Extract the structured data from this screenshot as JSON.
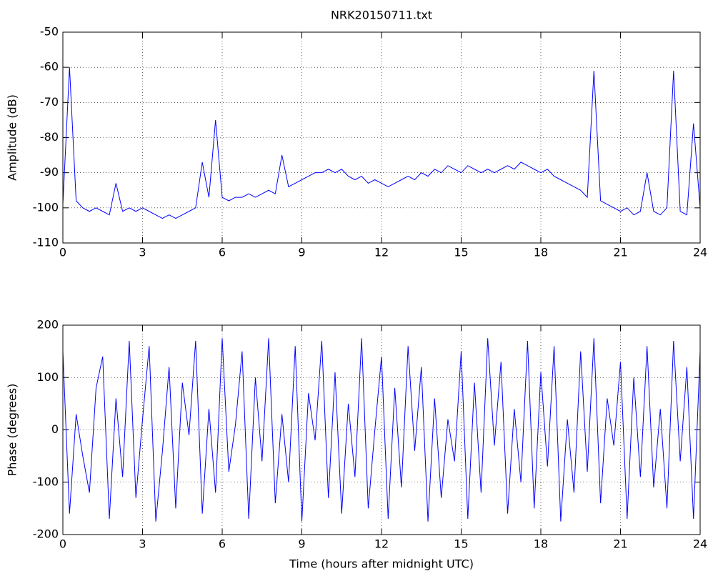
{
  "chart_data": [
    {
      "type": "line",
      "title": "NRK20150711.txt",
      "y_label": "Amplitude (dB)",
      "x": [
        0,
        0.25,
        0.5,
        0.75,
        1,
        1.25,
        1.5,
        1.75,
        2,
        2.25,
        2.5,
        2.75,
        3,
        3.25,
        3.5,
        3.75,
        4,
        4.25,
        4.5,
        4.75,
        5,
        5.25,
        5.5,
        5.75,
        6,
        6.25,
        6.5,
        6.75,
        7,
        7.25,
        7.5,
        7.75,
        8,
        8.25,
        8.5,
        8.75,
        9,
        9.25,
        9.5,
        9.75,
        10,
        10.25,
        10.5,
        10.75,
        11,
        11.25,
        11.5,
        11.75,
        12,
        12.25,
        12.5,
        12.75,
        13,
        13.25,
        13.5,
        13.75,
        14,
        14.25,
        14.5,
        14.75,
        15,
        15.25,
        15.5,
        15.75,
        16,
        16.25,
        16.5,
        16.75,
        17,
        17.25,
        17.5,
        17.75,
        18,
        18.25,
        18.5,
        18.75,
        19,
        19.25,
        19.5,
        19.75,
        20,
        20.25,
        20.5,
        20.75,
        21,
        21.25,
        21.5,
        21.75,
        22,
        22.25,
        22.5,
        22.75,
        23,
        23.25,
        23.5,
        23.75,
        24
      ],
      "series": [
        {
          "name": "Amplitude",
          "color": "#0000ff",
          "values": [
            -99,
            -60,
            -98,
            -100,
            -101,
            -100,
            -101,
            -102,
            -93,
            -101,
            -100,
            -101,
            -100,
            -101,
            -102,
            -103,
            -102,
            -103,
            -102,
            -101,
            -100,
            -87,
            -97,
            -75,
            -97,
            -98,
            -97,
            -97,
            -96,
            -97,
            -96,
            -95,
            -96,
            -85,
            -94,
            -93,
            -92,
            -91,
            -90,
            -90,
            -89,
            -90,
            -89,
            -91,
            -92,
            -91,
            -93,
            -92,
            -93,
            -94,
            -93,
            -92,
            -91,
            -92,
            -90,
            -91,
            -89,
            -90,
            -88,
            -89,
            -90,
            -88,
            -89,
            -90,
            -89,
            -90,
            -89,
            -88,
            -89,
            -87,
            -88,
            -89,
            -90,
            -89,
            -91,
            -92,
            -93,
            -94,
            -95,
            -97,
            -61,
            -98,
            -99,
            -100,
            -101,
            -100,
            -102,
            -101,
            -90,
            -101,
            -102,
            -100,
            -61,
            -101,
            -102,
            -76,
            -100
          ]
        }
      ],
      "xlim": [
        0,
        24
      ],
      "xticks": [
        0,
        3,
        6,
        9,
        12,
        15,
        18,
        21,
        24
      ],
      "ylim": [
        -110,
        -50
      ],
      "yticks": [
        -110,
        -100,
        -90,
        -80,
        -70,
        -60,
        -50
      ],
      "grid": true
    },
    {
      "type": "line",
      "x_label": "Time (hours after midnight UTC)",
      "y_label": "Phase (degrees)",
      "x": [
        0,
        0.25,
        0.5,
        0.75,
        1,
        1.25,
        1.5,
        1.75,
        2,
        2.25,
        2.5,
        2.75,
        3,
        3.25,
        3.5,
        3.75,
        4,
        4.25,
        4.5,
        4.75,
        5,
        5.25,
        5.5,
        5.75,
        6,
        6.25,
        6.5,
        6.75,
        7,
        7.25,
        7.5,
        7.75,
        8,
        8.25,
        8.5,
        8.75,
        9,
        9.25,
        9.5,
        9.75,
        10,
        10.25,
        10.5,
        10.75,
        11,
        11.25,
        11.5,
        11.75,
        12,
        12.25,
        12.5,
        12.75,
        13,
        13.25,
        13.5,
        13.75,
        14,
        14.25,
        14.5,
        14.75,
        15,
        15.25,
        15.5,
        15.75,
        16,
        16.25,
        16.5,
        16.75,
        17,
        17.25,
        17.5,
        17.75,
        18,
        18.25,
        18.5,
        18.75,
        19,
        19.25,
        19.5,
        19.75,
        20,
        20.25,
        20.5,
        20.75,
        21,
        21.25,
        21.5,
        21.75,
        22,
        22.25,
        22.5,
        22.75,
        23,
        23.25,
        23.5,
        23.75,
        24
      ],
      "series": [
        {
          "name": "Phase",
          "color": "#0000ff",
          "values": [
            150,
            -160,
            30,
            -50,
            -120,
            80,
            140,
            -170,
            60,
            -90,
            170,
            -130,
            20,
            160,
            -175,
            -40,
            120,
            -150,
            90,
            -10,
            170,
            -160,
            40,
            -120,
            175,
            -80,
            10,
            150,
            -170,
            100,
            -60,
            175,
            -140,
            30,
            -100,
            160,
            -175,
            70,
            -20,
            170,
            -130,
            110,
            -160,
            50,
            -90,
            175,
            -150,
            0,
            140,
            -170,
            80,
            -110,
            160,
            -40,
            120,
            -175,
            60,
            -130,
            20,
            -60,
            150,
            -170,
            90,
            -120,
            175,
            -30,
            130,
            -160,
            40,
            -100,
            170,
            -150,
            110,
            -70,
            160,
            -175,
            20,
            -120,
            150,
            -80,
            175,
            -140,
            60,
            -30,
            130,
            -170,
            100,
            -90,
            160,
            -110,
            40,
            -150,
            170,
            -60,
            120,
            -170,
            150
          ]
        }
      ],
      "xlim": [
        0,
        24
      ],
      "xticks": [
        0,
        3,
        6,
        9,
        12,
        15,
        18,
        21,
        24
      ],
      "ylim": [
        -200,
        200
      ],
      "yticks": [
        -200,
        -100,
        0,
        100,
        200
      ],
      "grid": true
    }
  ]
}
